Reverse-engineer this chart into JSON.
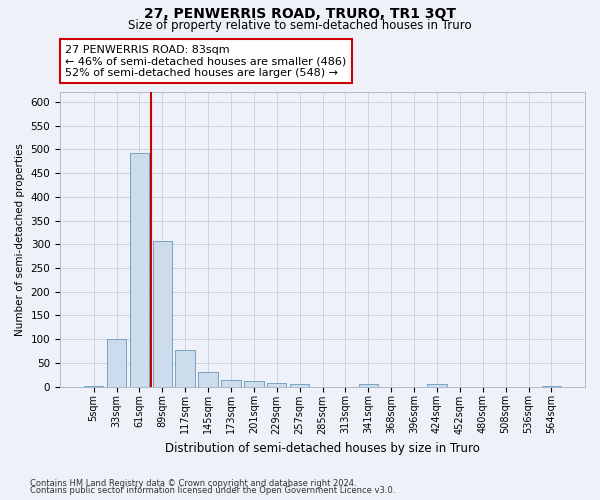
{
  "title": "27, PENWERRIS ROAD, TRURO, TR1 3QT",
  "subtitle": "Size of property relative to semi-detached houses in Truro",
  "xlabel": "Distribution of semi-detached houses by size in Truro",
  "ylabel": "Number of semi-detached properties",
  "bar_color": "#ccdcec",
  "bar_edge_color": "#6699bb",
  "grid_color": "#c8d4e0",
  "background_color": "#eef2f8",
  "annotation_box_color": "#ffffff",
  "annotation_border_color": "#cc0000",
  "vline_color": "#cc0000",
  "categories": [
    "5sqm",
    "33sqm",
    "61sqm",
    "89sqm",
    "117sqm",
    "145sqm",
    "173sqm",
    "201sqm",
    "229sqm",
    "257sqm",
    "285sqm",
    "313sqm",
    "341sqm",
    "368sqm",
    "396sqm",
    "424sqm",
    "452sqm",
    "480sqm",
    "508sqm",
    "536sqm",
    "564sqm"
  ],
  "values": [
    2,
    100,
    493,
    307,
    78,
    30,
    14,
    11,
    8,
    5,
    0,
    0,
    5,
    0,
    0,
    5,
    0,
    0,
    0,
    0,
    2
  ],
  "property_label": "27 PENWERRIS ROAD: 83sqm",
  "pct_smaller": 46,
  "n_smaller": 486,
  "pct_larger": 52,
  "n_larger": 548,
  "vline_x_index": 2.5,
  "ylim": [
    0,
    620
  ],
  "yticks": [
    0,
    50,
    100,
    150,
    200,
    250,
    300,
    350,
    400,
    450,
    500,
    550,
    600
  ],
  "footnote1": "Contains HM Land Registry data © Crown copyright and database right 2024.",
  "footnote2": "Contains public sector information licensed under the Open Government Licence v3.0."
}
